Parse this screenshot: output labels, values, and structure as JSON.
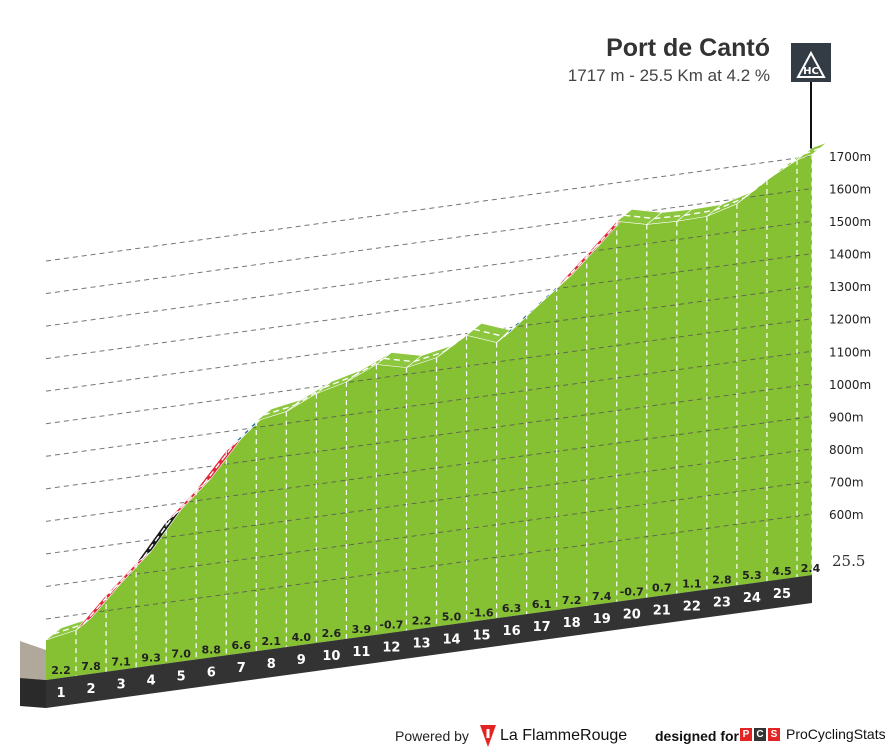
{
  "climb": {
    "name": "Port de Cantó",
    "summary": "1717 m - 25.5 Km at 4.2 %",
    "category": "HC"
  },
  "footer": {
    "powered_by": "Powered by",
    "lfr_name": "La FlammeRouge",
    "designed_for": "designed for",
    "pcs_letters": [
      "P",
      "C",
      "S"
    ],
    "pcs_name": "ProCyclingStats"
  },
  "chart_data": {
    "type": "area",
    "title": "Port de Cantó",
    "x_unit": "km",
    "y_unit": "m",
    "km_labels": [
      "1",
      "2",
      "3",
      "4",
      "5",
      "6",
      "7",
      "8",
      "9",
      "10",
      "11",
      "12",
      "13",
      "14",
      "15",
      "16",
      "17",
      "18",
      "19",
      "20",
      "21",
      "22",
      "23",
      "24",
      "25"
    ],
    "end_label": "25.5",
    "gradients": [
      2.2,
      7.8,
      7.1,
      9.3,
      7.0,
      8.8,
      6.6,
      2.1,
      4.0,
      2.6,
      3.9,
      -0.7,
      2.2,
      5.0,
      -1.6,
      6.3,
      6.1,
      7.2,
      7.4,
      -0.7,
      0.7,
      1.1,
      2.8,
      5.3,
      4.5,
      2.4
    ],
    "gradient_labels": [
      "2.2",
      "7.8",
      "7.1",
      "9.3",
      "7.0",
      "8.8",
      "6.6",
      "2.1",
      "4.0",
      "2.6",
      "3.9",
      "-0.7",
      "2.2",
      "5.0",
      "-1.6",
      "6.3",
      "6.1",
      "7.2",
      "7.4",
      "-0.7",
      "0.7",
      "1.1",
      "2.8",
      "5.3",
      "4.5",
      "2.4"
    ],
    "y_ticks": [
      600,
      700,
      800,
      900,
      1000,
      1100,
      1200,
      1300,
      1400,
      1500,
      1600,
      1700
    ],
    "y_tick_labels": [
      "600m",
      "700m",
      "800m",
      "900m",
      "1000m",
      "1100m",
      "1200m",
      "1300m",
      "1400m",
      "1500m",
      "1600m",
      "1700m"
    ],
    "summit_altitude": 1717,
    "color_scale": {
      "green": "#8dc63f",
      "blue": "#1e6796",
      "red": "#e3263a",
      "black": "#1a1a1a"
    },
    "side_colors": {
      "face": "#86c134",
      "front_base": "#333333",
      "left_face": "#b0a89b"
    }
  }
}
